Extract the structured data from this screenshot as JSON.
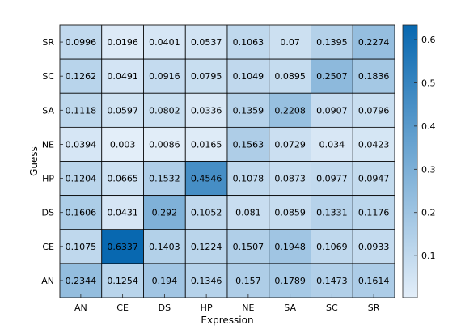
{
  "chart_data": {
    "type": "heatmap",
    "xlabel": "Expression",
    "ylabel": "Guess",
    "x_categories": [
      "AN",
      "CE",
      "DS",
      "HP",
      "NE",
      "SA",
      "SC",
      "SR"
    ],
    "y_categories": [
      "SR",
      "SC",
      "SA",
      "NE",
      "HP",
      "DS",
      "CE",
      "AN"
    ],
    "values": [
      [
        0.0996,
        0.0196,
        0.0401,
        0.0537,
        0.1063,
        0.07,
        0.1395,
        0.2274
      ],
      [
        0.1262,
        0.0491,
        0.0916,
        0.0795,
        0.1049,
        0.0895,
        0.2507,
        0.1836
      ],
      [
        0.1118,
        0.0597,
        0.0802,
        0.0336,
        0.1359,
        0.2208,
        0.0907,
        0.0796
      ],
      [
        0.0394,
        0.003,
        0.0086,
        0.0165,
        0.1563,
        0.0729,
        0.034,
        0.0423
      ],
      [
        0.1204,
        0.0665,
        0.1532,
        0.4546,
        0.1078,
        0.0873,
        0.0977,
        0.0947
      ],
      [
        0.1606,
        0.0431,
        0.292,
        0.1052,
        0.081,
        0.0859,
        0.1331,
        0.1176
      ],
      [
        0.1075,
        0.6337,
        0.1403,
        0.1224,
        0.1507,
        0.1948,
        0.1069,
        0.0933
      ],
      [
        0.2344,
        0.1254,
        0.194,
        0.1346,
        0.157,
        0.1789,
        0.1473,
        0.1614
      ]
    ],
    "value_labels": [
      [
        "0.0996",
        "0.0196",
        "0.0401",
        "0.0537",
        "0.1063",
        "0.07",
        "0.1395",
        "0.2274"
      ],
      [
        "0.1262",
        "0.0491",
        "0.0916",
        "0.0795",
        "0.1049",
        "0.0895",
        "0.2507",
        "0.1836"
      ],
      [
        "0.1118",
        "0.0597",
        "0.0802",
        "0.0336",
        "0.1359",
        "0.2208",
        "0.0907",
        "0.0796"
      ],
      [
        "0.0394",
        "0.003",
        "0.0086",
        "0.0165",
        "0.1563",
        "0.0729",
        "0.034",
        "0.0423"
      ],
      [
        "0.1204",
        "0.0665",
        "0.1532",
        "0.4546",
        "0.1078",
        "0.0873",
        "0.0977",
        "0.0947"
      ],
      [
        "0.1606",
        "0.0431",
        "0.292",
        "0.1052",
        "0.081",
        "0.0859",
        "0.1331",
        "0.1176"
      ],
      [
        "0.1075",
        "0.6337",
        "0.1403",
        "0.1224",
        "0.1507",
        "0.1948",
        "0.1069",
        "0.0933"
      ],
      [
        "0.2344",
        "0.1254",
        "0.194",
        "0.1346",
        "0.157",
        "0.1789",
        "0.1473",
        "0.1614"
      ]
    ],
    "colorbar": {
      "range": [
        0.003,
        0.6337
      ],
      "ticks": [
        0.1,
        0.2,
        0.3,
        0.4,
        0.5,
        0.6
      ],
      "tick_labels": [
        "0.1",
        "0.2",
        "0.3",
        "0.4",
        "0.5",
        "0.6"
      ],
      "color_low": "#e3eef9",
      "color_high": "#0868b0"
    },
    "grid": false,
    "legend": "none"
  }
}
